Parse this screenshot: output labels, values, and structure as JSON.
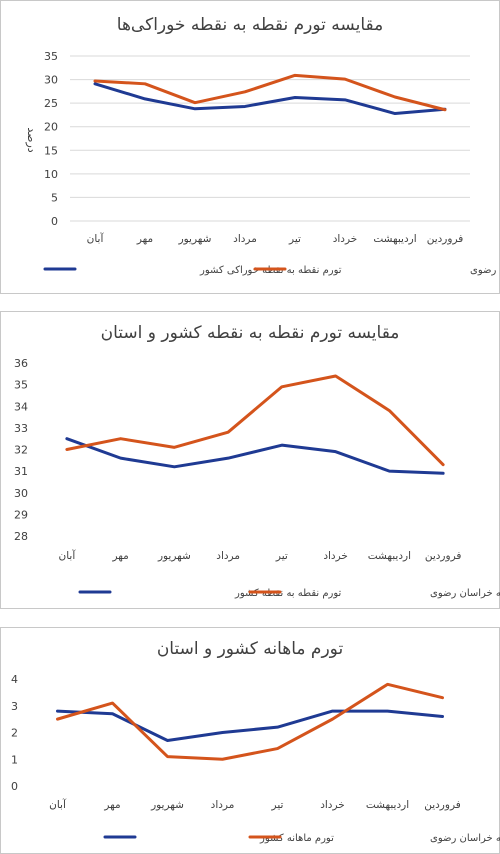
{
  "colors": {
    "country": "#1f3a93",
    "province": "#d4541c"
  },
  "chart_data": [
    {
      "type": "line",
      "title": "مقایسه تورم نقطه به نقطه خوراکی‌ها",
      "ylabel": "درصد",
      "xlabel": "",
      "categories": [
        "فروردین",
        "اردیبهشت",
        "خرداد",
        "تیر",
        "مرداد",
        "شهریور",
        "مهر",
        "آبان"
      ],
      "ylim": [
        0,
        35
      ],
      "yticks": [
        0,
        5,
        10,
        15,
        20,
        25,
        30,
        35
      ],
      "grid": true,
      "legend": "bottom",
      "series": [
        {
          "name": "تورم نقطه به نقطه خوراکی کشور",
          "color": "#1f3a93",
          "values": [
            23.7,
            22.8,
            25.7,
            26.2,
            24.3,
            23.8,
            25.9,
            29.1
          ]
        },
        {
          "name": "تورم نقطه به نقطه خوراکی خراسان رضوی",
          "color": "#d4541c",
          "values": [
            23.6,
            26.3,
            30.1,
            30.9,
            27.4,
            25.1,
            29.1,
            29.7
          ]
        }
      ]
    },
    {
      "type": "line",
      "title": "مقایسه تورم نقطه به نقطه کشور و استان",
      "ylabel": "",
      "xlabel": "",
      "categories": [
        "فروردین",
        "اردیبهشت",
        "خرداد",
        "تیر",
        "مرداد",
        "شهریور",
        "مهر",
        "آبان"
      ],
      "ylim": [
        28,
        36
      ],
      "yticks": [
        28,
        29,
        30,
        31,
        32,
        33,
        34,
        35,
        36
      ],
      "grid": false,
      "legend": "bottom",
      "series": [
        {
          "name": "تورم نقطه به نقطه کشور",
          "color": "#1f3a93",
          "values": [
            30.9,
            31.0,
            31.9,
            32.2,
            31.6,
            31.2,
            31.6,
            32.5
          ]
        },
        {
          "name": "تورم نقطه به نقطه خراسان رضوی",
          "color": "#d4541c",
          "values": [
            31.3,
            33.8,
            35.4,
            34.9,
            32.8,
            32.1,
            32.5,
            32.0
          ]
        }
      ]
    },
    {
      "type": "line",
      "title": "تورم ماهانه کشور و استان",
      "ylabel": "",
      "xlabel": "",
      "categories": [
        "فروردین",
        "اردیبهشت",
        "خرداد",
        "تیر",
        "مرداد",
        "شهریور",
        "مهر",
        "آبان"
      ],
      "ylim": [
        0,
        4
      ],
      "yticks": [
        0,
        1,
        2,
        3,
        4
      ],
      "grid": false,
      "legend": "bottom",
      "series": [
        {
          "name": "تورم ماهانه کشور",
          "color": "#1f3a93",
          "values": [
            2.6,
            2.8,
            2.8,
            2.2,
            2.0,
            1.7,
            2.7,
            2.8
          ]
        },
        {
          "name": "تورم ماهانه خراسان رضوی",
          "color": "#d4541c",
          "values": [
            3.3,
            3.8,
            2.5,
            1.4,
            1.0,
            1.1,
            3.1,
            2.5
          ]
        }
      ]
    }
  ]
}
